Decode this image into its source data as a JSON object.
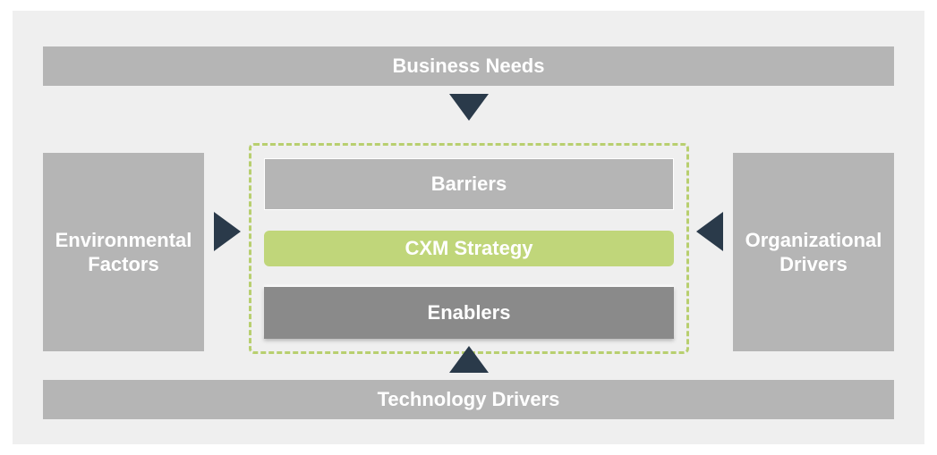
{
  "diagram": {
    "type": "infographic",
    "background_color": "#efefef",
    "text_color": "#ffffff",
    "font_family": "Arial",
    "title_fontsize": 22,
    "arrow_color": "#2a3a4a",
    "dashed_border_color": "#b8cf6f",
    "top_bar": {
      "label": "Business Needs",
      "bg": "#b5b5b5"
    },
    "bottom_bar": {
      "label": "Technology Drivers",
      "bg": "#b5b5b5"
    },
    "left_box": {
      "label": "Environmental Factors",
      "bg": "#b5b5b5"
    },
    "right_box": {
      "label": "Organizational Drivers",
      "bg": "#b5b5b5"
    },
    "center": {
      "barriers": {
        "label": "Barriers",
        "bg": "#b5b5b5"
      },
      "strategy": {
        "label": "CXM Strategy",
        "bg": "#c0d67a"
      },
      "enablers": {
        "label": "Enablers",
        "bg": "#8a8a8a"
      }
    }
  }
}
